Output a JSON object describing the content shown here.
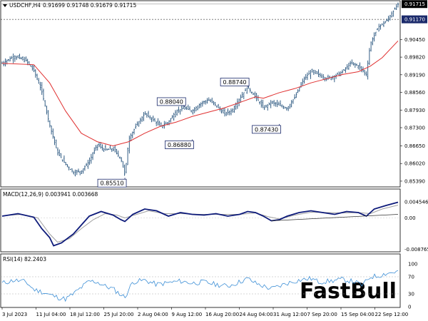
{
  "header": {
    "symbol": "USDCHF,H4",
    "ohlc": "0.91699 0.91748 0.91679 0.91715"
  },
  "watermark": "FastBull",
  "colors": {
    "candles": "#1f4e79",
    "ma": "#e03030",
    "macd": "#0d1a7a",
    "signal": "#a0a0a0",
    "rsi": "#3d8fd6",
    "trendline": "#333333",
    "current_tag_bg": "#000000",
    "dotted_tag_bg": "#1b2a6b"
  },
  "chart_data": [
    {
      "type": "candlestick",
      "title": "USDCHF,H4",
      "x": [
        "3 Jul 2023",
        "11 Jul 04:00",
        "18 Jul 12:00",
        "25 Jul 20:00",
        "2 Aug 04:00",
        "9 Aug 12:00",
        "16 Aug 20:00",
        "24 Aug 04:00",
        "31 Aug 12:00",
        "7 Sep 20:00",
        "15 Sep 04:00",
        "22 Sep 12:00"
      ],
      "ylim": [
        0.8521,
        0.9181
      ],
      "y_ticks": [
        "0.91715",
        "0.91170",
        "0.90450",
        "0.89820",
        "0.89190",
        "0.88560",
        "0.87930",
        "0.87300",
        "0.86650",
        "0.86020",
        "0.85390"
      ],
      "current_price": "0.91715",
      "dotted_level": "0.91170",
      "close_path": [
        [
          0,
          0.896
        ],
        [
          3,
          0.8985
        ],
        [
          6,
          0.897
        ],
        [
          8,
          0.8935
        ],
        [
          10,
          0.886
        ],
        [
          12,
          0.874
        ],
        [
          14,
          0.864
        ],
        [
          16,
          0.86
        ],
        [
          18,
          0.857
        ],
        [
          20,
          0.8575
        ],
        [
          22,
          0.861
        ],
        [
          24,
          0.867
        ],
        [
          26,
          0.865
        ],
        [
          28,
          0.8655
        ],
        [
          30,
          0.862
        ],
        [
          31,
          0.856
        ],
        [
          32,
          0.869
        ],
        [
          34,
          0.874
        ],
        [
          36,
          0.878
        ],
        [
          38,
          0.876
        ],
        [
          40,
          0.8735
        ],
        [
          42,
          0.875
        ],
        [
          44,
          0.879
        ],
        [
          46,
          0.88
        ],
        [
          48,
          0.879
        ],
        [
          50,
          0.8815
        ],
        [
          52,
          0.883
        ],
        [
          54,
          0.881
        ],
        [
          56,
          0.878
        ],
        [
          58,
          0.879
        ],
        [
          60,
          0.8835
        ],
        [
          62,
          0.8874
        ],
        [
          64,
          0.884
        ],
        [
          66,
          0.88
        ],
        [
          68,
          0.882
        ],
        [
          70,
          0.881
        ],
        [
          72,
          0.88
        ],
        [
          74,
          0.884
        ],
        [
          76,
          0.89
        ],
        [
          78,
          0.893
        ],
        [
          80,
          0.892
        ],
        [
          82,
          0.8905
        ],
        [
          84,
          0.8915
        ],
        [
          86,
          0.893
        ],
        [
          88,
          0.896
        ],
        [
          90,
          0.895
        ],
        [
          92,
          0.892
        ],
        [
          93,
          0.903
        ],
        [
          95,
          0.909
        ],
        [
          97,
          0.911
        ],
        [
          99,
          0.915
        ],
        [
          100,
          0.9171
        ]
      ],
      "ma_path": [
        [
          0,
          0.896
        ],
        [
          8,
          0.8955
        ],
        [
          12,
          0.889
        ],
        [
          16,
          0.879
        ],
        [
          20,
          0.871
        ],
        [
          24,
          0.868
        ],
        [
          28,
          0.8665
        ],
        [
          32,
          0.868
        ],
        [
          36,
          0.871
        ],
        [
          40,
          0.8735
        ],
        [
          44,
          0.875
        ],
        [
          48,
          0.877
        ],
        [
          52,
          0.8785
        ],
        [
          56,
          0.88
        ],
        [
          60,
          0.882
        ],
        [
          64,
          0.884
        ],
        [
          66,
          0.8835
        ],
        [
          70,
          0.8855
        ],
        [
          74,
          0.887
        ],
        [
          78,
          0.889
        ],
        [
          82,
          0.8905
        ],
        [
          86,
          0.892
        ],
        [
          90,
          0.893
        ],
        [
          93,
          0.895
        ],
        [
          96,
          0.898
        ],
        [
          100,
          0.904
        ]
      ],
      "annotations": [
        {
          "label": "0.85510",
          "x": 31,
          "price": 0.8551
        },
        {
          "label": "0.88040",
          "x": 46,
          "price": 0.8804
        },
        {
          "label": "0.86880",
          "x": 48,
          "price": 0.8688
        },
        {
          "label": "0.88740",
          "x": 62,
          "price": 0.8874
        },
        {
          "label": "0.87430",
          "x": 70,
          "price": 0.8743
        }
      ]
    },
    {
      "type": "line",
      "title": "MACD(12,26,9) 0.003941 0.003668",
      "ylim": [
        -0.0093,
        0.0051
      ],
      "y_ticks": [
        "0.004546",
        "0.00",
        "-0.008765"
      ],
      "macd_path": [
        [
          0,
          0.0005
        ],
        [
          4,
          0.0012
        ],
        [
          8,
          0.0002
        ],
        [
          10,
          -0.003
        ],
        [
          12,
          -0.0055
        ],
        [
          13,
          -0.0078
        ],
        [
          15,
          -0.007
        ],
        [
          18,
          -0.0045
        ],
        [
          20,
          -0.002
        ],
        [
          22,
          0.0005
        ],
        [
          25,
          0.0018
        ],
        [
          28,
          0.0008
        ],
        [
          30,
          -0.0005
        ],
        [
          31,
          -0.001
        ],
        [
          33,
          0.001
        ],
        [
          36,
          0.0025
        ],
        [
          39,
          0.002
        ],
        [
          42,
          0.0005
        ],
        [
          45,
          0.0015
        ],
        [
          48,
          0.001
        ],
        [
          51,
          0.0008
        ],
        [
          54,
          0.0012
        ],
        [
          57,
          0.0005
        ],
        [
          60,
          0.001
        ],
        [
          62,
          0.0018
        ],
        [
          64,
          0.0015
        ],
        [
          66,
          0.0005
        ],
        [
          68,
          -0.0008
        ],
        [
          70,
          -0.0005
        ],
        [
          72,
          0.0005
        ],
        [
          75,
          0.0015
        ],
        [
          78,
          0.002
        ],
        [
          81,
          0.0015
        ],
        [
          84,
          0.001
        ],
        [
          87,
          0.0018
        ],
        [
          90,
          0.0015
        ],
        [
          92,
          0.0005
        ],
        [
          94,
          0.0025
        ],
        [
          97,
          0.0035
        ],
        [
          100,
          0.0044
        ]
      ],
      "signal_path": [
        [
          0,
          0.0006
        ],
        [
          5,
          0.001
        ],
        [
          9,
          0.0
        ],
        [
          12,
          -0.0045
        ],
        [
          14,
          -0.0068
        ],
        [
          17,
          -0.0058
        ],
        [
          20,
          -0.003
        ],
        [
          23,
          -0.0005
        ],
        [
          26,
          0.0012
        ],
        [
          29,
          0.0008
        ],
        [
          31,
          0.0
        ],
        [
          34,
          0.001
        ],
        [
          37,
          0.002
        ],
        [
          41,
          0.0012
        ],
        [
          45,
          0.0012
        ],
        [
          50,
          0.001
        ],
        [
          55,
          0.001
        ],
        [
          60,
          0.001
        ],
        [
          64,
          0.0014
        ],
        [
          67,
          0.0004
        ],
        [
          70,
          -0.0003
        ],
        [
          74,
          0.0008
        ],
        [
          78,
          0.0016
        ],
        [
          82,
          0.0015
        ],
        [
          86,
          0.0014
        ],
        [
          90,
          0.0015
        ],
        [
          93,
          0.0012
        ],
        [
          96,
          0.0025
        ],
        [
          100,
          0.0036
        ]
      ],
      "trendline": [
        [
          68,
          -0.0008
        ],
        [
          100,
          0.001
        ]
      ]
    },
    {
      "type": "line",
      "title": "RSI(14) 82.2403",
      "ylim": [
        0,
        100
      ],
      "y_ticks": [
        "100",
        "70",
        "30",
        "0"
      ],
      "levels": [
        70,
        30
      ],
      "rsi_path": [
        [
          0,
          55
        ],
        [
          3,
          62
        ],
        [
          6,
          58
        ],
        [
          8,
          40
        ],
        [
          10,
          35
        ],
        [
          12,
          28
        ],
        [
          14,
          22
        ],
        [
          16,
          18
        ],
        [
          18,
          30
        ],
        [
          20,
          45
        ],
        [
          22,
          60
        ],
        [
          24,
          58
        ],
        [
          26,
          48
        ],
        [
          28,
          42
        ],
        [
          30,
          28
        ],
        [
          31,
          22
        ],
        [
          33,
          58
        ],
        [
          36,
          62
        ],
        [
          39,
          52
        ],
        [
          42,
          56
        ],
        [
          45,
          60
        ],
        [
          48,
          55
        ],
        [
          51,
          58
        ],
        [
          54,
          52
        ],
        [
          57,
          48
        ],
        [
          60,
          58
        ],
        [
          62,
          66
        ],
        [
          64,
          55
        ],
        [
          66,
          48
        ],
        [
          68,
          42
        ],
        [
          70,
          48
        ],
        [
          72,
          55
        ],
        [
          75,
          62
        ],
        [
          78,
          66
        ],
        [
          80,
          58
        ],
        [
          83,
          60
        ],
        [
          86,
          64
        ],
        [
          89,
          58
        ],
        [
          91,
          50
        ],
        [
          93,
          70
        ],
        [
          95,
          72
        ],
        [
          97,
          78
        ],
        [
          100,
          82
        ]
      ]
    }
  ]
}
